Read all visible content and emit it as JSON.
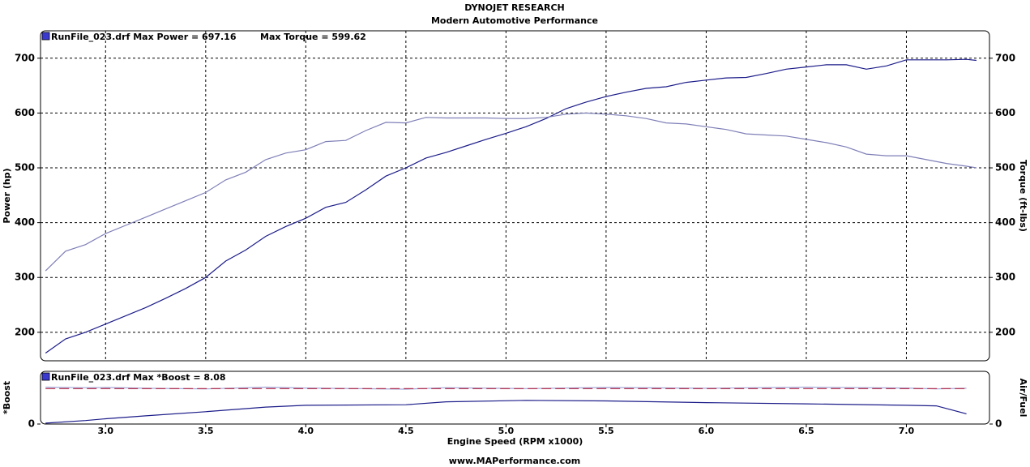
{
  "header": {
    "title": "DYNOJET RESEARCH",
    "subtitle": "Modern Automotive Performance"
  },
  "footer": "www.MAPerformance.com",
  "chart_data": [
    {
      "type": "line",
      "legend": [
        "RunFile_023.drf Max Power = 697.16",
        "Max Torque = 599.62"
      ],
      "ylabel": "Power (hp)",
      "y2label": "Torque (ft-lbs)",
      "xlim": [
        2.675,
        7.415
      ],
      "xticks": [
        3,
        3.5,
        4,
        4.5,
        5,
        5.5,
        6,
        6.5,
        7
      ],
      "ylim": [
        148,
        750
      ],
      "yticks": [
        200,
        300,
        400,
        500,
        600,
        700
      ],
      "y2lim": [
        148,
        750
      ],
      "y2ticks": [
        200,
        300,
        400,
        500,
        600,
        700
      ],
      "grid": true,
      "x": [
        2.7,
        2.8,
        2.9,
        3.0,
        3.1,
        3.2,
        3.3,
        3.4,
        3.5,
        3.6,
        3.7,
        3.8,
        3.9,
        4.0,
        4.1,
        4.2,
        4.3,
        4.4,
        4.5,
        4.6,
        4.7,
        4.8,
        4.9,
        5.0,
        5.1,
        5.2,
        5.3,
        5.4,
        5.5,
        5.6,
        5.7,
        5.8,
        5.9,
        6.0,
        6.1,
        6.2,
        6.3,
        6.4,
        6.5,
        6.6,
        6.7,
        6.8,
        6.9,
        7.0,
        7.1,
        7.2,
        7.3,
        7.35
      ],
      "series": [
        {
          "color": "#1c1c8a",
          "values": [
            162,
            188,
            200,
            215,
            230,
            245,
            262,
            280,
            300,
            330,
            350,
            375,
            393,
            408,
            428,
            437,
            460,
            485,
            500,
            518,
            528,
            540,
            552,
            563,
            575,
            590,
            608,
            620,
            630,
            638,
            645,
            648,
            656,
            660,
            664,
            665,
            672,
            680,
            684,
            688,
            688,
            680,
            686,
            697,
            697,
            697,
            698,
            696
          ]
        },
        {
          "color": "#7f7fb8",
          "axis": "y2",
          "values": [
            312,
            348,
            360,
            380,
            395,
            410,
            425,
            440,
            455,
            478,
            492,
            515,
            527,
            533,
            548,
            550,
            568,
            583,
            582,
            592,
            591,
            591,
            591,
            590,
            590,
            592,
            598,
            600,
            598,
            595,
            590,
            582,
            580,
            575,
            570,
            562,
            560,
            558,
            552,
            546,
            538,
            525,
            522,
            522,
            515,
            508,
            503,
            500
          ]
        }
      ]
    },
    {
      "type": "line",
      "legend": [
        "RunFile_023.drf Max *Boost = 8.08"
      ],
      "ylabel": "*Boost",
      "y2label": "Air/Fuel",
      "xlabel": "Engine Speed (RPM x1000)",
      "xlim": [
        2.675,
        7.415
      ],
      "xticks": [
        {
          "value": 3,
          "label": "3.0"
        },
        3.5,
        {
          "value": 4,
          "label": "4.0"
        },
        4.5,
        {
          "value": 5,
          "label": "5.0"
        },
        5.5,
        {
          "value": 6,
          "label": "6.0"
        },
        6.5,
        {
          "value": 7,
          "label": "7.0"
        }
      ],
      "ylim": [
        0,
        18
      ],
      "yticks": [
        0
      ],
      "y2lim": [
        0,
        18
      ],
      "y2ticks": [
        0
      ],
      "x": [
        2.7,
        2.9,
        3.0,
        3.2,
        3.5,
        3.8,
        4.0,
        4.5,
        4.7,
        5.1,
        5.5,
        6.0,
        6.5,
        7.0,
        7.15,
        7.3
      ],
      "series": [
        {
          "color": "#1c1c8a",
          "values": [
            0.3,
            1.2,
            1.8,
            2.8,
            4.2,
            5.8,
            6.4,
            6.6,
            7.6,
            8.08,
            7.9,
            7.3,
            6.9,
            6.4,
            6.2,
            3.5
          ]
        },
        {
          "color": "#a0a8d8",
          "axis": "y2",
          "values": [
            12.6,
            12.4,
            12.5,
            12.2,
            12.0,
            12.6,
            12.3,
            11.9,
            12.4,
            12.1,
            12.5,
            12.2,
            12.6,
            12.3,
            12.0,
            12.2
          ]
        },
        {
          "color": "#b02040",
          "axis": "y2",
          "dash": true,
          "values": [
            12.1,
            12.1,
            12.1,
            12.1,
            12.1,
            12.1,
            12.1,
            12.1,
            12.1,
            12.1,
            12.1,
            12.1,
            12.1,
            12.1,
            12.1,
            12.1
          ]
        }
      ]
    }
  ]
}
